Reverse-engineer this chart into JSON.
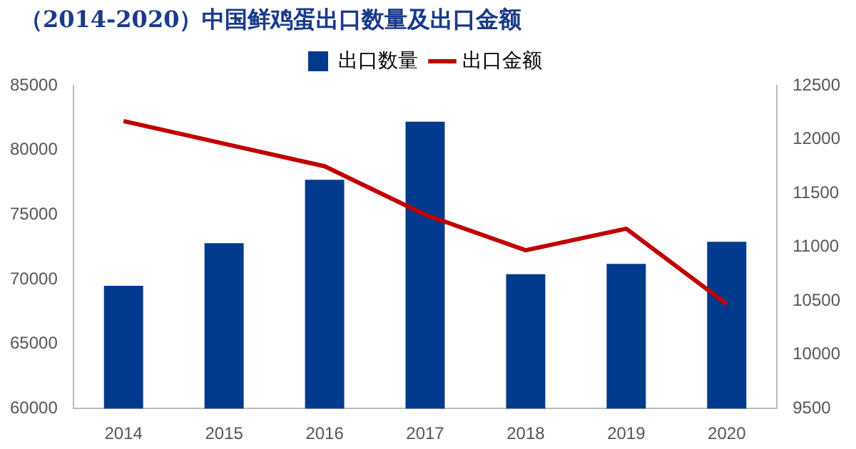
{
  "chart_data": {
    "type": "bar",
    "title": "（2014-2020）中国鲜鸡蛋出口数量及出口金额",
    "categories": [
      "2014",
      "2015",
      "2016",
      "2017",
      "2018",
      "2019",
      "2020"
    ],
    "series": [
      {
        "name": "出口数量",
        "color": "#003a8c",
        "values": [
          69500,
          72800,
          77700,
          82200,
          70400,
          71200,
          72900
        ]
      },
      {
        "name": "出口金额",
        "type": "line",
        "axis": "y2",
        "color": "#c00000",
        "values": [
          12170,
          11960,
          11750,
          11300,
          10970,
          11170,
          10470
        ]
      }
    ],
    "ylim": [
      60000,
      85000
    ],
    "yticks": [
      60000,
      65000,
      70000,
      75000,
      80000,
      85000
    ],
    "y2lim": [
      9500,
      12500
    ],
    "y2ticks": [
      9500,
      10000,
      10500,
      11000,
      11500,
      12000,
      12500
    ],
    "grid": false,
    "legend": "top",
    "marker": "none",
    "line_style": "solid"
  }
}
